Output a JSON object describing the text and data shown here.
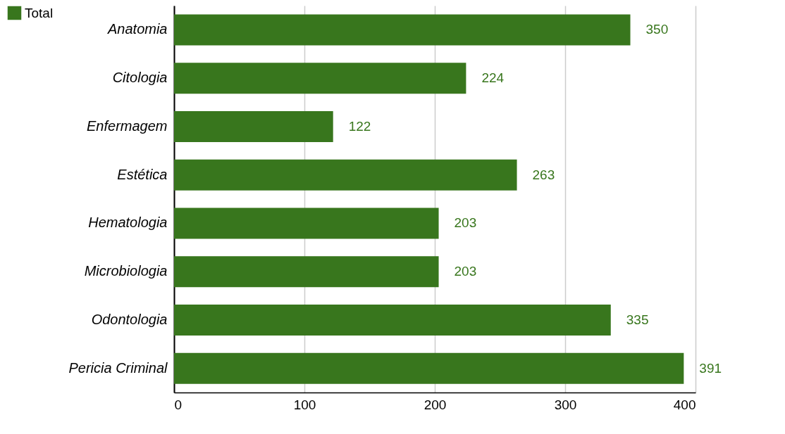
{
  "chart_data": {
    "type": "bar",
    "orientation": "horizontal",
    "categories": [
      "Anatomia",
      "Citologia",
      "Enfermagem",
      "Estética",
      "Hematologia",
      "Microbiologia",
      "Odontologia",
      "Pericia Criminal"
    ],
    "series": [
      {
        "name": "Total",
        "color": "#38761d",
        "values": [
          350,
          224,
          122,
          263,
          203,
          203,
          335,
          391
        ]
      }
    ],
    "xlim": [
      0,
      400
    ],
    "xticks": [
      0,
      100,
      200,
      300,
      400
    ],
    "grid": "x",
    "legend": "top left",
    "data_labels": true
  }
}
